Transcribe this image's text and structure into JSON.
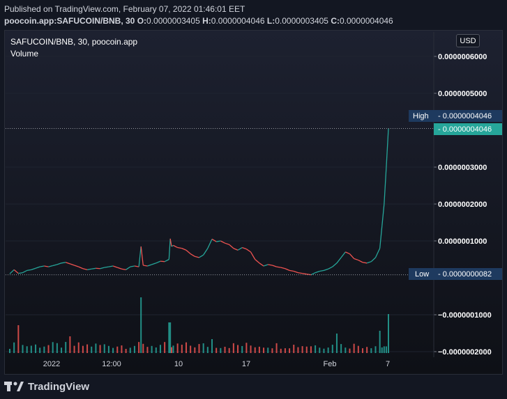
{
  "header": {
    "published": "Published on TradingView.com, February 07, 2022 01:46:01 EET",
    "symbol_line": "poocoin.app:SAFUCOIN/BNB, 30",
    "open_label": "O:",
    "open": "0.0000003405",
    "high_label": "H:",
    "high": "0.0000004046",
    "low_label": "L:",
    "low": "0.0000003405",
    "close_label": "C:",
    "close": "0.0000004046"
  },
  "legend": {
    "title": "SAFUCOIN/BNB, 30, poocoin.app",
    "volume": "Volume"
  },
  "currency_button": "USD",
  "footer": {
    "brand": "TradingView",
    "icon": "tradingview-logo-icon"
  },
  "colors": {
    "background": "#131722",
    "up": "#26a69a",
    "down": "#ef5350",
    "high_tag": "#1e3a5f",
    "last_price_tag": "#26a69a",
    "low_tag": "#1e3a5f"
  },
  "chart_data": {
    "type": "candlestick",
    "title": "SAFUCOIN/BNB, 30, poocoin.app",
    "x_tick_labels": [
      "2022",
      "12:00",
      "10",
      "17",
      "Feb",
      "7"
    ],
    "y_tick_labels": [
      "0.0000006000",
      "0.0000005000",
      "0.0000003000",
      "0.0000002000",
      "0.0000001000",
      "−0.0000001000",
      "−0.0000002000"
    ],
    "y_ticks": [
      6e-07,
      5e-07,
      3e-07,
      2e-07,
      1e-07,
      -1e-07,
      -2e-07
    ],
    "ylim": [
      -2e-07,
      6.5e-07
    ],
    "high_marker": {
      "label": "High",
      "value": "0.0000004046"
    },
    "last_price_marker": {
      "value": "0.0000004046"
    },
    "low_marker": {
      "label": "Low",
      "value": "0.0000000082"
    },
    "price_path": [
      [
        0,
        1.1e-08
      ],
      [
        1,
        2.2e-08
      ],
      [
        2,
        1.2e-08
      ],
      [
        3,
        1.4e-08
      ],
      [
        4,
        2e-08
      ],
      [
        5,
        2.2e-08
      ],
      [
        6,
        2.6e-08
      ],
      [
        7,
        3e-08
      ],
      [
        8,
        3.2e-08
      ],
      [
        9,
        3e-08
      ],
      [
        10,
        3.3e-08
      ],
      [
        11,
        3.6e-08
      ],
      [
        12,
        4e-08
      ],
      [
        13,
        4.2e-08
      ],
      [
        14,
        3.8e-08
      ],
      [
        15,
        3.4e-08
      ],
      [
        16,
        3e-08
      ],
      [
        17,
        2.5e-08
      ],
      [
        18,
        2.2e-08
      ],
      [
        19,
        2.4e-08
      ],
      [
        20,
        2.6e-08
      ],
      [
        21,
        2.5e-08
      ],
      [
        22,
        2.8e-08
      ],
      [
        23,
        3e-08
      ],
      [
        24,
        3.2e-08
      ],
      [
        25,
        2.8e-08
      ],
      [
        26,
        2.4e-08
      ],
      [
        27,
        2.2e-08
      ],
      [
        28,
        3e-08
      ],
      [
        29,
        3.2e-08
      ],
      [
        30,
        3e-08
      ],
      [
        30.5,
        8.5e-08
      ],
      [
        31,
        3.4e-08
      ],
      [
        32,
        3.2e-08
      ],
      [
        33,
        3.6e-08
      ],
      [
        34,
        4e-08
      ],
      [
        35,
        4.5e-08
      ],
      [
        36,
        4.4e-08
      ],
      [
        37,
        5e-08
      ],
      [
        37.3,
        1.06e-07
      ],
      [
        37.6,
        8.5e-08
      ],
      [
        38,
        8.8e-08
      ],
      [
        39,
        8.2e-08
      ],
      [
        40,
        8e-08
      ],
      [
        41,
        7.5e-08
      ],
      [
        42,
        6.5e-08
      ],
      [
        43,
        5.8e-08
      ],
      [
        44,
        5.5e-08
      ],
      [
        45,
        6.2e-08
      ],
      [
        46,
        8e-08
      ],
      [
        47,
        1.05e-07
      ],
      [
        48,
        9.8e-08
      ],
      [
        49,
        1e-07
      ],
      [
        50,
        9.4e-08
      ],
      [
        51,
        9e-08
      ],
      [
        52,
        8e-08
      ],
      [
        53,
        7.5e-08
      ],
      [
        54,
        8.2e-08
      ],
      [
        55,
        7.8e-08
      ],
      [
        56,
        7e-08
      ],
      [
        57,
        5e-08
      ],
      [
        58,
        4e-08
      ],
      [
        59,
        3.2e-08
      ],
      [
        60,
        3.6e-08
      ],
      [
        61,
        3.4e-08
      ],
      [
        62,
        3e-08
      ],
      [
        63,
        2.8e-08
      ],
      [
        64,
        2.5e-08
      ],
      [
        65,
        2e-08
      ],
      [
        66,
        1.8e-08
      ],
      [
        67,
        1.4e-08
      ],
      [
        68,
        1.2e-08
      ],
      [
        69,
        1e-08
      ],
      [
        70,
        8.2e-09
      ],
      [
        71,
        1.4e-08
      ],
      [
        72,
        1.8e-08
      ],
      [
        73,
        2e-08
      ],
      [
        74,
        2.4e-08
      ],
      [
        75,
        3e-08
      ],
      [
        76,
        4e-08
      ],
      [
        77,
        5.5e-08
      ],
      [
        78,
        7e-08
      ],
      [
        79,
        6.5e-08
      ],
      [
        80,
        5.2e-08
      ],
      [
        81,
        4.8e-08
      ],
      [
        82,
        4.2e-08
      ],
      [
        83,
        4e-08
      ],
      [
        84,
        4.4e-08
      ],
      [
        85,
        5.5e-08
      ],
      [
        86,
        8e-08
      ],
      [
        86.5,
        1.4e-07
      ],
      [
        87,
        2e-07
      ],
      [
        87.5,
        3e-07
      ],
      [
        88,
        4.046e-07
      ]
    ],
    "volume_spikes": [
      [
        2,
        0.5
      ],
      [
        14,
        0.3
      ],
      [
        30.5,
        1.0
      ],
      [
        37.3,
        0.55
      ],
      [
        47,
        0.25
      ],
      [
        76,
        0.35
      ],
      [
        86,
        0.4
      ],
      [
        88,
        0.7
      ]
    ]
  }
}
